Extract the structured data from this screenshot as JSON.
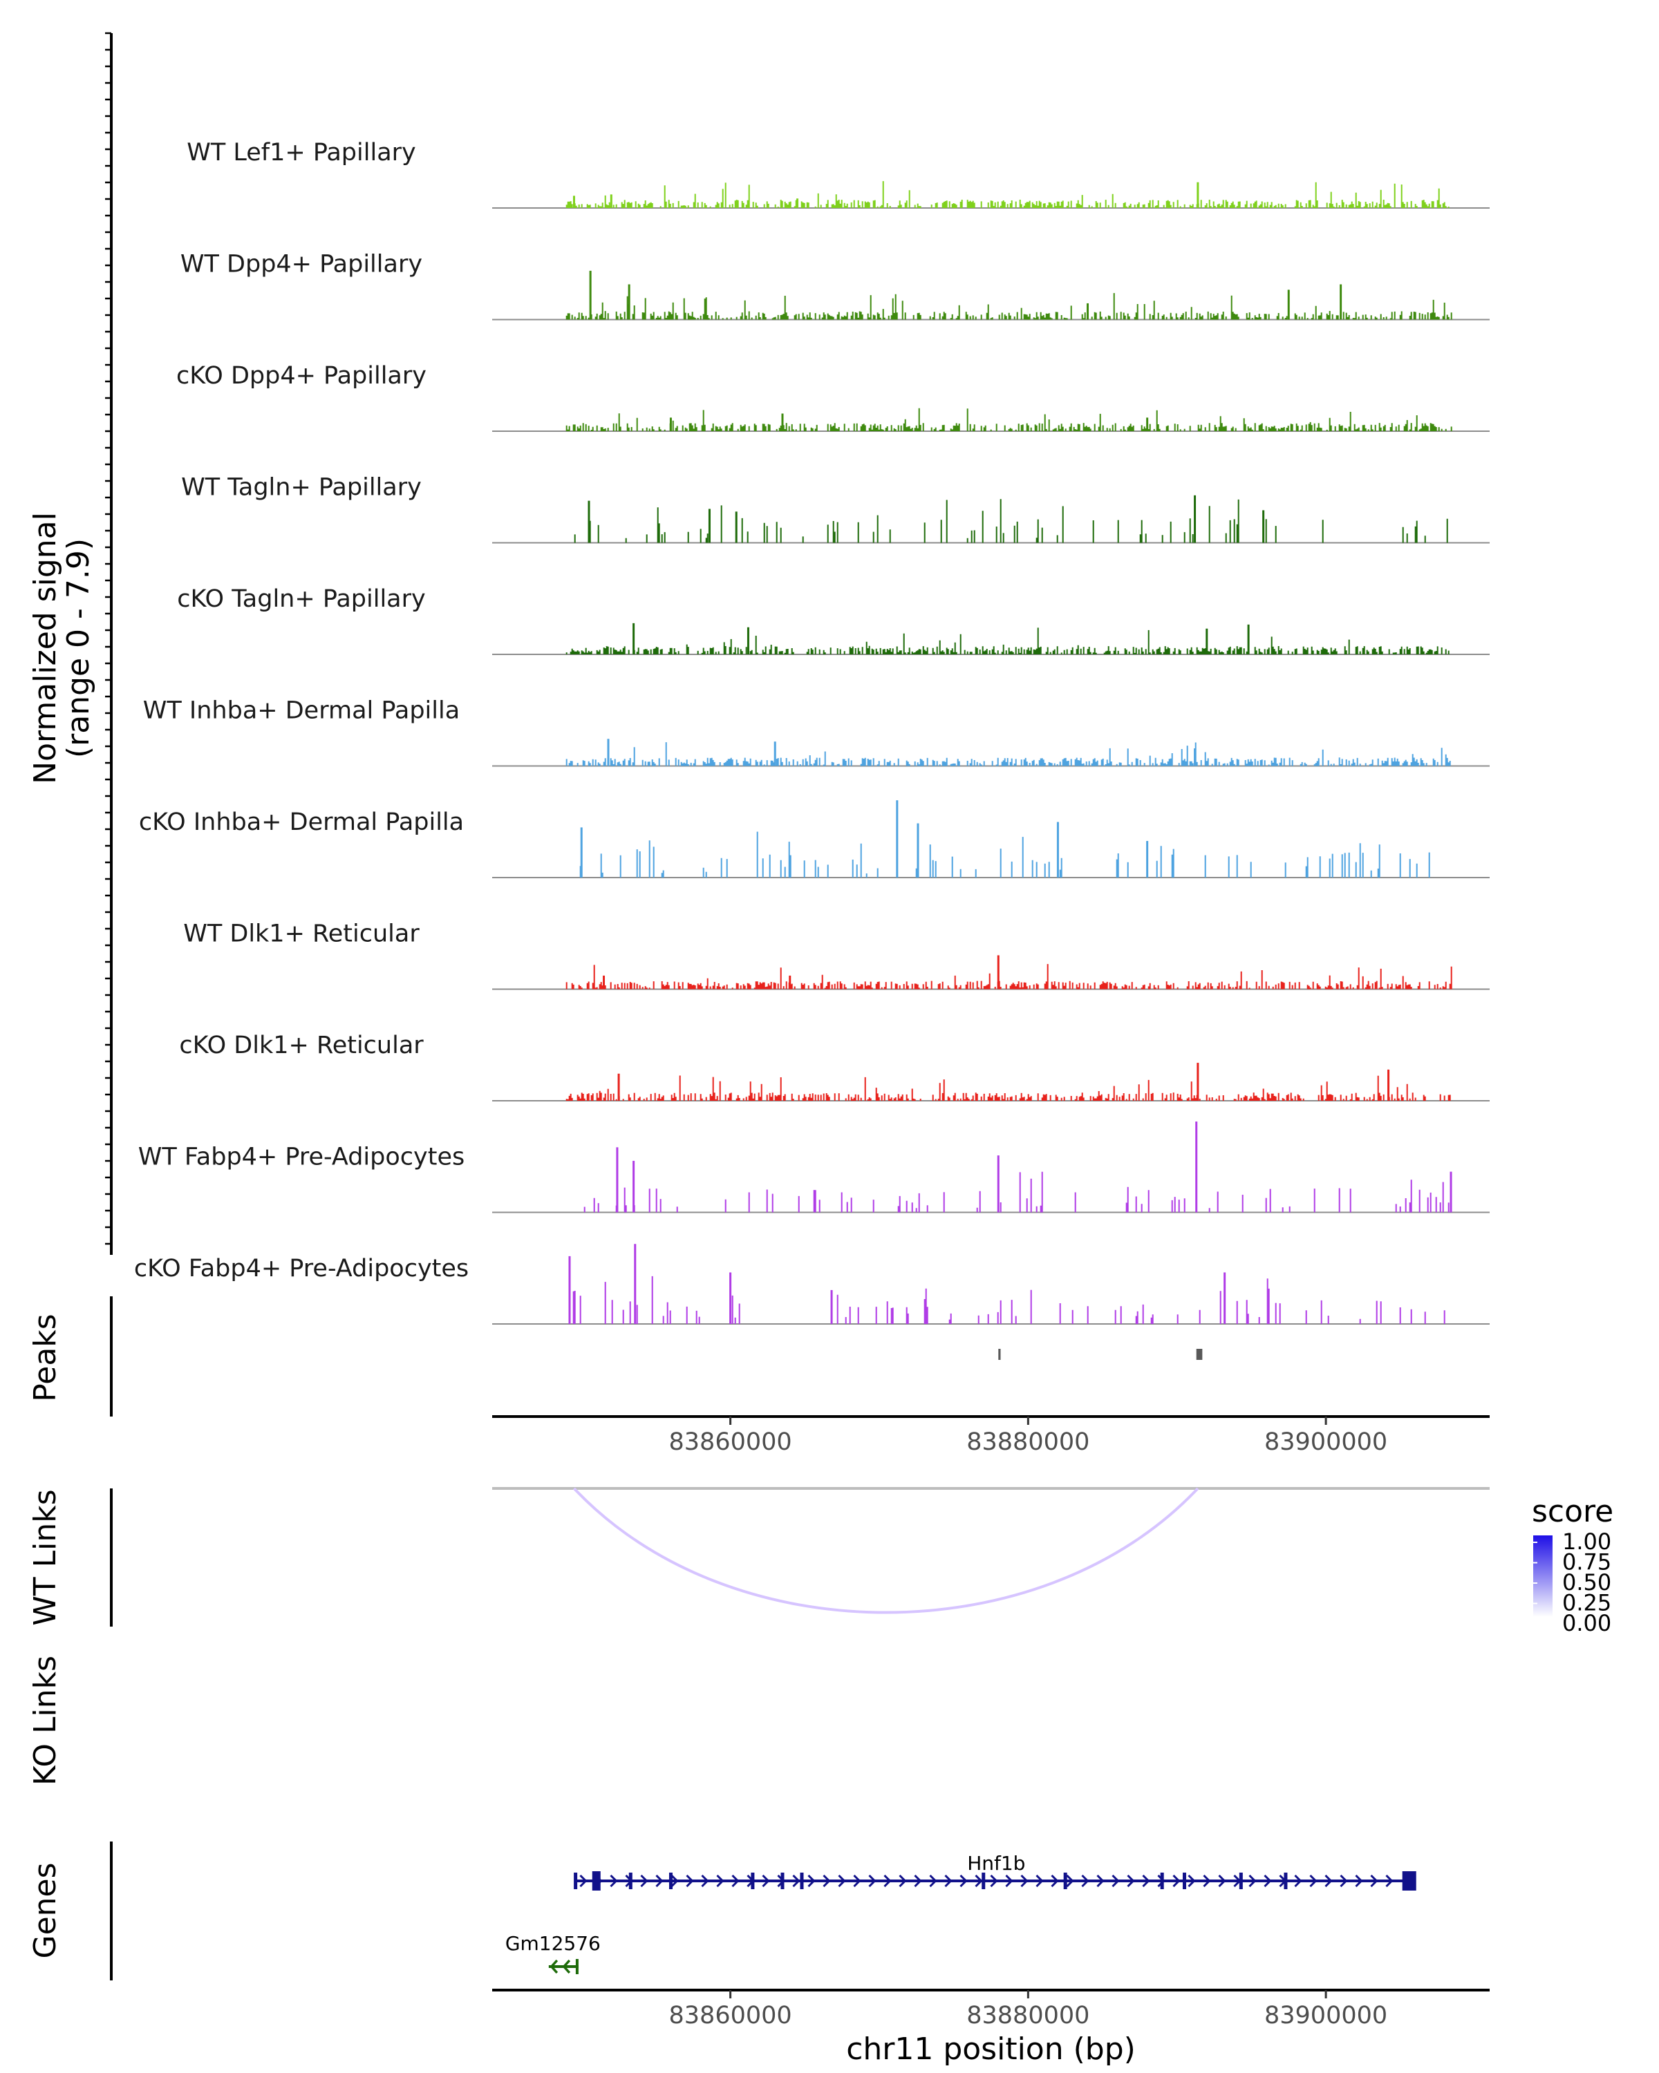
{
  "chart_data": {
    "type": "genome-coverage",
    "region": {
      "chromosome": "chr11",
      "start": 83844000,
      "end": 83911000
    },
    "x_ticks": [
      83860000,
      83880000,
      83900000
    ],
    "x_tick_labels": [
      "83860000",
      "83880000",
      "83900000"
    ],
    "xlabel": "chr11 position (bp)",
    "coverage_ylabel": [
      "Normalized signal",
      "(range 0 - 7.9)"
    ],
    "ylim": [
      0,
      7.9
    ],
    "tracks": [
      {
        "name": "WT Lef1+ Papillary",
        "color": "#7FD11C",
        "style": "dense",
        "seed": 11,
        "peaks": [
          [
            83849500,
            0.9
          ],
          [
            83852000,
            1.0
          ],
          [
            83864500,
            0.7
          ],
          [
            83891400,
            1.9
          ]
        ]
      },
      {
        "name": "WT Dpp4+ Papillary",
        "color": "#3E8A0E",
        "style": "dense",
        "seed": 23,
        "peaks": [
          [
            83850600,
            3.6
          ],
          [
            83853200,
            2.6
          ],
          [
            83884000,
            1.2
          ],
          [
            83901000,
            2.6
          ],
          [
            83897500,
            2.2
          ]
        ]
      },
      {
        "name": "cKO Dpp4+ Papillary",
        "color": "#3E8A0E",
        "style": "dense",
        "seed": 37,
        "peaks": [
          [
            83863500,
            1.3
          ],
          [
            83856000,
            1.0
          ],
          [
            83888000,
            1.0
          ]
        ]
      },
      {
        "name": "WT Tagln+ Papillary",
        "color": "#1E6B0A",
        "style": "sparse",
        "seed": 41,
        "peaks": [
          [
            83850500,
            3.1
          ],
          [
            83858600,
            2.5
          ],
          [
            83860400,
            2.3
          ],
          [
            83891200,
            3.5
          ],
          [
            83895800,
            2.4
          ]
        ]
      },
      {
        "name": "cKO Tagln+ Papillary",
        "color": "#1E6B0A",
        "style": "dense",
        "seed": 53,
        "peaks": [
          [
            83853500,
            2.3
          ],
          [
            83892000,
            1.9
          ],
          [
            83894800,
            2.2
          ],
          [
            83861200,
            2.0
          ]
        ]
      },
      {
        "name": "WT Inhba+ Dermal Papilla",
        "color": "#4EA3E0",
        "style": "dense",
        "seed": 61,
        "peaks": [
          [
            83851800,
            2.0
          ],
          [
            83863000,
            1.8
          ],
          [
            83891200,
            1.3
          ]
        ]
      },
      {
        "name": "cKO Inhba+ Dermal Papilla",
        "color": "#4EA3E0",
        "style": "sparse",
        "seed": 71,
        "peaks": [
          [
            83871200,
            5.7
          ],
          [
            83872600,
            4.0
          ],
          [
            83882000,
            4.1
          ],
          [
            83888000,
            2.7
          ],
          [
            83850000,
            3.7
          ]
        ]
      },
      {
        "name": "WT Dlk1+ Reticular",
        "color": "#E8221C",
        "style": "dense",
        "seed": 83,
        "peaks": [
          [
            83878000,
            2.5
          ],
          [
            83851500,
            1.0
          ],
          [
            83864000,
            1.0
          ]
        ]
      },
      {
        "name": "cKO Dlk1+ Reticular",
        "color": "#E8221C",
        "style": "dense",
        "seed": 97,
        "peaks": [
          [
            83891400,
            2.8
          ],
          [
            83852500,
            2.0
          ],
          [
            83904200,
            2.3
          ]
        ]
      },
      {
        "name": "WT Fabp4+ Pre-Adipocytes",
        "color": "#B03CE6",
        "style": "sparse",
        "seed": 101,
        "peaks": [
          [
            83891300,
            6.7
          ],
          [
            83852400,
            4.8
          ],
          [
            83878000,
            4.2
          ],
          [
            83908400,
            3.0
          ],
          [
            83853500,
            3.8
          ]
        ]
      },
      {
        "name": "cKO Fabp4+ Pre-Adipocytes",
        "color": "#B03CE6",
        "style": "sparse",
        "seed": 113,
        "peaks": [
          [
            83853600,
            5.9
          ],
          [
            83849200,
            5.0
          ],
          [
            83860000,
            3.8
          ],
          [
            83893200,
            3.8
          ],
          [
            83866800,
            2.5
          ]
        ]
      }
    ],
    "peaks_track": {
      "label": "Peaks",
      "regions": [
        [
          83878000,
          83878150
        ],
        [
          83891300,
          83891700
        ]
      ],
      "color": "#595959"
    },
    "links_tracks": [
      {
        "label": "WT Links",
        "links": [
          {
            "start": 83849500,
            "end": 83891400,
            "score": 0.3
          }
        ]
      },
      {
        "label": "KO Links",
        "links": []
      }
    ],
    "score_legend": {
      "title": "score",
      "labels": [
        "1.00",
        "0.75",
        "0.50",
        "0.25",
        "0.00"
      ],
      "low_color": "#FFFFFF",
      "high_color": "#1E0FE6"
    },
    "genes_track": {
      "label": "Genes",
      "genes": [
        {
          "name": "Hnf1b",
          "start": 83849500,
          "end": 83906000,
          "strand": "+",
          "color": "#11118A",
          "exons": [
            83849600,
            83851000,
            83853300,
            83856000,
            83861500,
            83863500,
            83864800,
            83877000,
            83882500,
            83889000,
            83890500,
            83894300,
            83897300,
            83905600
          ]
        },
        {
          "name": "Gm12576",
          "start": 83847800,
          "end": 83849800,
          "strand": "-",
          "color": "#1E6B0A",
          "exons": []
        }
      ]
    }
  }
}
